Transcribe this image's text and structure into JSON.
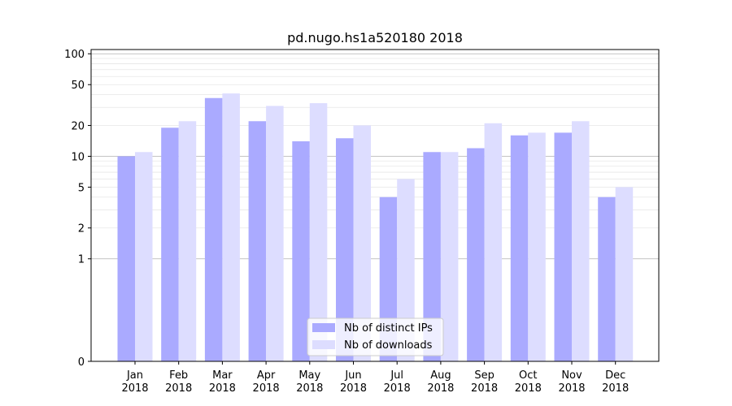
{
  "chart_data": {
    "type": "bar",
    "title": "pd.nugo.hs1a520180 2018",
    "xlabel": "",
    "ylabel": "",
    "yscale": "symlog",
    "ylim": [
      0,
      110
    ],
    "yticks": [
      0,
      1,
      2,
      5,
      10,
      20,
      50,
      100
    ],
    "grid": "horizontal",
    "legend_position": "bottom-center",
    "categories": [
      "Jan\n2018",
      "Feb\n2018",
      "Mar\n2018",
      "Apr\n2018",
      "May\n2018",
      "Jun\n2018",
      "Jul\n2018",
      "Aug\n2018",
      "Sep\n2018",
      "Oct\n2018",
      "Nov\n2018",
      "Dec\n2018"
    ],
    "series": [
      {
        "name": "Nb of distinct IPs",
        "color": "#aaaaff",
        "values": [
          10,
          19,
          37,
          22,
          14,
          15,
          4,
          11,
          12,
          16,
          17,
          4
        ]
      },
      {
        "name": "Nb of downloads",
        "color": "#ddddff",
        "values": [
          11,
          22,
          41,
          31,
          33,
          20,
          6,
          11,
          21,
          17,
          22,
          5
        ]
      }
    ]
  }
}
